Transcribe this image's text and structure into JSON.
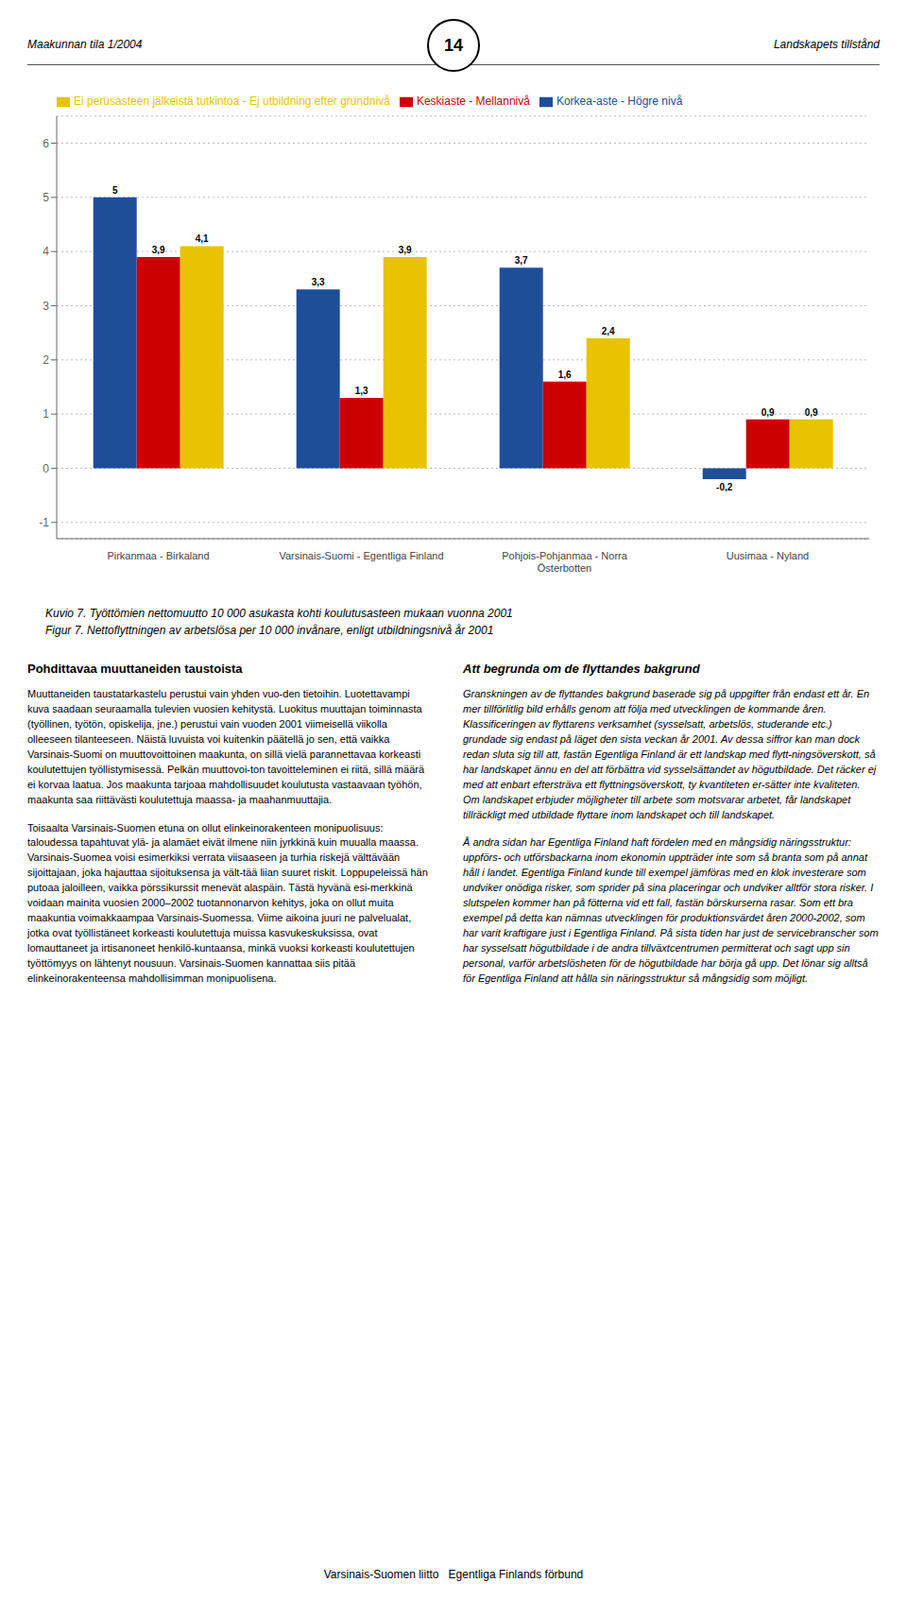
{
  "chart_data": {
    "type": "bar",
    "title": "Kuvio 7.  Työttömien nettomuutto 10 000 asukasta kohti koulutusasteen mukaan vuonna 2001",
    "subtitle": "Figur 7.   Nettoflyttningen av arbetslösa per 10 000 invånare, enligt utbildningsnivå år 2001",
    "categories": [
      "Pirkanmaa - Birkaland",
      "Varsinais-Suomi - Egentliga Finland",
      "Pohjois-Pohjanmaa - Norra\nÖsterbotten",
      "Uusimaa - Nyland"
    ],
    "series": [
      {
        "name": "Korkea-aste - Högre nivå",
        "color": "#1F4E99",
        "values": [
          5.0,
          3.3,
          3.7,
          -0.2
        ],
        "value_labels": [
          "5",
          "3,3",
          "3,7",
          "-0,2"
        ]
      },
      {
        "name": "Keskiaste - Mellannivå",
        "color": "#CC0000",
        "values": [
          3.9,
          1.3,
          1.6,
          0.9
        ],
        "value_labels": [
          "3,9",
          "1,3",
          "1,6",
          "0,9"
        ]
      },
      {
        "name": "Ei perusasteen jälkeistä tutkintoa - Ej utbildning efter grundnivå",
        "color": "#E8C300",
        "values": [
          4.1,
          3.9,
          2.4,
          0.9
        ],
        "value_labels": [
          "4,1",
          "3,9",
          "2,4",
          "0,9"
        ]
      }
    ],
    "ylim": [
      -1.3,
      6.5
    ],
    "yticks": [
      -1,
      0,
      1,
      2,
      3,
      4,
      5,
      6
    ],
    "grid": true,
    "legend": "upper left",
    "data_labels": true,
    "annotations": [
      "Maakunnan tila 1/2004",
      "Landskapets tillstånd",
      "14",
      "Pohdittavaa muuttaneiden taustoista",
      "Att begrunda om de flyttandes bakgrund",
      "Muuttaneiden taustatarkastelu perustui vain yhden vuo-den tietoihin. Luotettavampi kuva saadaan seuraamalla tulevien vuosien kehitystä. Luokitus muuttajan toiminnasta (työllinen, työtön, opiskelija, jne.) perustui vain vuoden 2001 viimeisellä viikolla olleeseen tilanteeseen. Näistä luvuista voi kuitenkin päätellä jo sen, että vaikka Varsinais-Suomi on muuttovoittoinen maakunta, on sillä vielä parannettavaa korkeasti koulutettujen työllistymisessä. Pelkän muuttovoi-ton tavoitteleminen ei riitä, sillä määrä ei korvaa laatua. Jos maakunta tarjoaa mahdollisuudet koulutusta vastaavaan työhön, maakunta saa riittävästi koulutettuja maassa- ja maahanmuuttajia.",
      "Toisaalta Varsinais-Suomen etuna on ollut elinkeinorakenteen monipuolisuus: taloudessa tapahtuvat ylä- ja alamäet eivät ilmene niin jyrkkinä kuin muualla maassa. Varsinais-Suomea voisi esimerkiksi verrata viisaaseen ja turhia riskejä välttävään sijoittajaan, joka hajauttaa sijoituksensa ja vält-tää liian suuret riskit. Loppupeleissä hän putoaa jaloilleen, vaikka pörssikurssit menevät alaspäin. Tästä hyvänä esi-merkkinä voidaan mainita vuosien 2000–2002 tuotannonarvon kehitys, joka on ollut muita maakuntia voimakkaampaa Varsinais-Suomessa. Viime aikoina juuri ne palvelualat, jotka ovat työllistäneet korkeasti koulutettuja muissa kasvukeskuksissa, ovat lomauttaneet ja irtisanoneet henkilö-kuntaansa, minkä vuoksi korkeasti koulutettujen työttömyys on lähtenyt nousuun. Varsinais-Suomen kannattaa siis pitää elinkeinorakenteensa mahdollisimman monipuolisena.",
      "Granskningen av de flyttandes bakgrund baserade sig på uppgifter från endast ett år. En mer tillförlitlig bild erhålls genom att följa med utvecklingen de kommande åren. Klassificeringen av flyttarens verksamhet (sysselsatt, arbetslös, studerande etc.) grundade sig endast på läget den sista veckan år 2001. Av dessa siffror kan man dock redan sluta sig till att, fastän Egentliga Finland är ett landskap med flytt-ningsöverskott, så har landskapet ännu en del att förbättra vid sysselsättandet av högutbildade. Det räcker ej med att enbart eftersträva ett flyttningsöverskott, ty kvantiteten er-sätter inte kvaliteten. Om landskapet erbjuder möjligheter till arbete som motsvarar arbetet, får landskapet tillräckligt med utbildade flyttare inom landskapet och till landskapet.",
      "Å andra sidan har Egentliga Finland haft fördelen med en mångsidig näringsstruktur: uppförs- och utförsbackarna inom ekonomin uppträder inte som så branta som på annat håll i landet. Egentliga Finland kunde till exempel jämföras med en klok investerare som undviker onödiga risker, som sprider på sina placeringar och undviker alltför stora risker. I slutspelen kommer han på fötterna vid ett fall, fastän börskurserna rasar. Som ett bra exempel på detta kan nämnas utvecklingen för produktionsvärdet åren 2000-2002, som har varit kraftigare just i Egentliga Finland. På sista tiden har just de servicebranscher som har sysselsatt högutbildade i de andra tillväxtcentrumen permitterat och sagt upp sin personal, varför arbetslösheten för de högutbildade har börja gå upp. Det lönar sig alltså för Egentliga Finland att hålla sin näringsstruktur så mångsidig som möjligt.",
      "Varsinais-Suomen liitto   Egentliga Finlands förbund"
    ]
  }
}
